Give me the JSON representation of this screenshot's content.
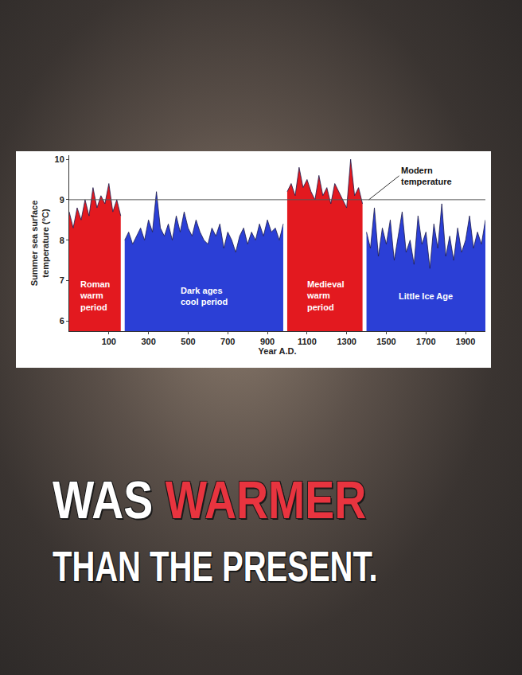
{
  "chart_data": {
    "type": "area",
    "x_label": "Year A.D.",
    "y_label": "Summer sea surface temperature (°C)",
    "xlim": [
      -100,
      2000
    ],
    "xticks": [
      100,
      300,
      500,
      700,
      900,
      1100,
      1300,
      1500,
      1700,
      1900
    ],
    "ylim": [
      5.75,
      10.1
    ],
    "yticks": [
      6,
      7,
      8,
      9,
      10
    ],
    "series": [
      {
        "name": "Roman\nwarm\nperiod",
        "color": "#e3191f",
        "x": [
          -100,
          -80,
          -60,
          -40,
          -20,
          0,
          20,
          40,
          60,
          80,
          100,
          120,
          140,
          160
        ],
        "values": [
          8.7,
          8.3,
          8.8,
          8.5,
          9.0,
          8.6,
          9.3,
          8.8,
          9.1,
          8.9,
          9.4,
          8.7,
          9.0,
          8.6
        ]
      },
      {
        "name": "Dark ages\ncool period",
        "color": "#2b3fd6",
        "x": [
          180,
          200,
          220,
          240,
          260,
          280,
          300,
          320,
          340,
          360,
          380,
          400,
          420,
          440,
          460,
          480,
          500,
          520,
          540,
          560,
          580,
          600,
          620,
          640,
          660,
          680,
          700,
          720,
          740,
          760,
          780,
          800,
          820,
          840,
          860,
          880,
          900,
          920,
          940,
          960,
          980
        ],
        "values": [
          8.0,
          8.2,
          7.9,
          8.1,
          8.3,
          8.0,
          8.5,
          8.2,
          9.2,
          8.3,
          8.1,
          8.4,
          8.0,
          8.6,
          8.2,
          8.7,
          8.3,
          8.1,
          8.5,
          8.2,
          8.0,
          7.9,
          8.3,
          8.1,
          8.4,
          7.8,
          8.2,
          8.0,
          7.7,
          8.1,
          8.3,
          7.9,
          8.2,
          8.0,
          8.4,
          8.1,
          8.5,
          8.2,
          8.3,
          8.0,
          8.4
        ]
      },
      {
        "name": "Medieval\nwarm\nperiod",
        "color": "#e3191f",
        "x": [
          1000,
          1020,
          1040,
          1060,
          1080,
          1100,
          1120,
          1140,
          1160,
          1180,
          1200,
          1220,
          1240,
          1260,
          1280,
          1300,
          1320,
          1340,
          1360,
          1380
        ],
        "values": [
          9.2,
          9.4,
          9.1,
          9.8,
          9.3,
          9.5,
          9.2,
          9.0,
          9.6,
          9.1,
          9.3,
          8.9,
          9.4,
          9.2,
          9.0,
          8.8,
          10.0,
          9.1,
          9.3,
          8.9
        ]
      },
      {
        "name": "Little Ice Age",
        "color": "#2b3fd6",
        "x": [
          1400,
          1420,
          1440,
          1460,
          1480,
          1500,
          1520,
          1540,
          1560,
          1580,
          1600,
          1620,
          1640,
          1660,
          1680,
          1700,
          1720,
          1740,
          1760,
          1780,
          1800,
          1820,
          1840,
          1860,
          1880,
          1900,
          1920,
          1940,
          1960,
          1980,
          2000
        ],
        "values": [
          8.2,
          7.8,
          8.8,
          7.6,
          8.3,
          7.9,
          8.5,
          7.5,
          8.1,
          8.7,
          7.7,
          8.0,
          7.4,
          8.6,
          7.9,
          8.2,
          7.3,
          8.4,
          7.8,
          8.9,
          7.6,
          8.1,
          7.5,
          8.3,
          7.7,
          8.0,
          8.6,
          7.8,
          8.2,
          7.9,
          8.5
        ]
      }
    ],
    "annotations": [
      {
        "text": "Modern temperature",
        "y": 9
      }
    ]
  },
  "caption": {
    "line1": [
      "WAS",
      "WARMER"
    ],
    "line2": "THAN THE PRESENT."
  }
}
